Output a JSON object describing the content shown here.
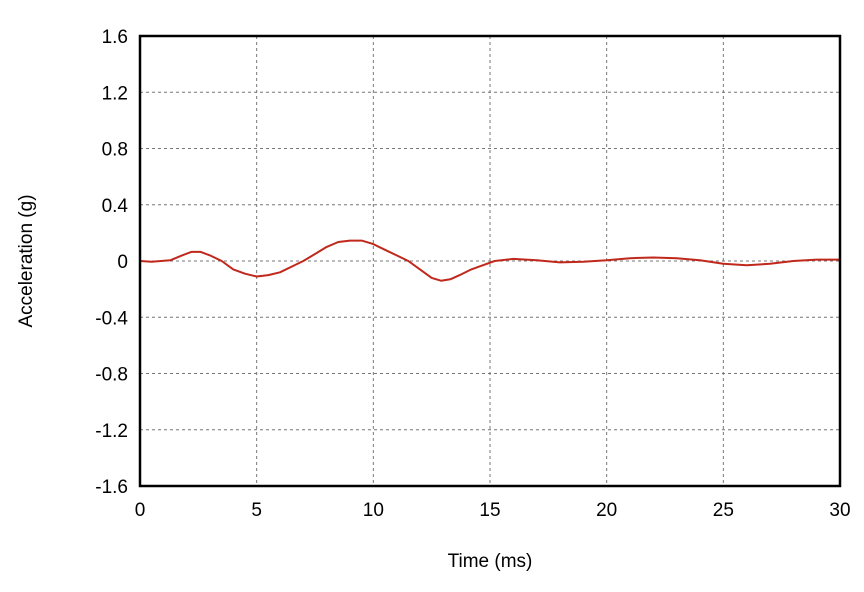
{
  "chart_data": {
    "type": "line",
    "title": "",
    "xlabel": "Time (ms)",
    "ylabel": "Acceleration (g)",
    "xlim": [
      0,
      30
    ],
    "ylim": [
      -1.6,
      1.6
    ],
    "xticks": [
      "0",
      "5",
      "10",
      "15",
      "20",
      "25",
      "30"
    ],
    "yticks": [
      "1.6",
      "1.2",
      "0.8",
      "0.4",
      "0",
      "-0.4",
      "-0.8",
      "-1.2",
      "-1.6"
    ],
    "grid": true,
    "series": [
      {
        "color": "#c0281c",
        "x": [
          0,
          0.5,
          1.3,
          1.8,
          2.2,
          2.6,
          3.0,
          3.5,
          4.0,
          4.5,
          5.0,
          5.5,
          6.0,
          6.5,
          7.0,
          7.5,
          8.0,
          8.5,
          9.0,
          9.5,
          10.0,
          10.5,
          11.0,
          11.5,
          12.0,
          12.5,
          12.9,
          13.3,
          13.7,
          14.2,
          14.7,
          15.2,
          16.0,
          17.0,
          18.0,
          19.0,
          20.0,
          21.0,
          22.0,
          23.0,
          24.0,
          25.0,
          26.0,
          27.0,
          28.0,
          29.0,
          30.0
        ],
        "y": [
          0,
          -0.005,
          0.005,
          0.04,
          0.065,
          0.065,
          0.04,
          0.0,
          -0.06,
          -0.09,
          -0.11,
          -0.1,
          -0.08,
          -0.04,
          0.0,
          0.05,
          0.1,
          0.135,
          0.145,
          0.145,
          0.12,
          0.08,
          0.04,
          0.0,
          -0.06,
          -0.12,
          -0.14,
          -0.13,
          -0.1,
          -0.06,
          -0.03,
          0.0,
          0.015,
          0.005,
          -0.01,
          -0.005,
          0.005,
          0.02,
          0.025,
          0.02,
          0.005,
          -0.02,
          -0.03,
          -0.02,
          0.0,
          0.01,
          0.01
        ]
      }
    ]
  }
}
